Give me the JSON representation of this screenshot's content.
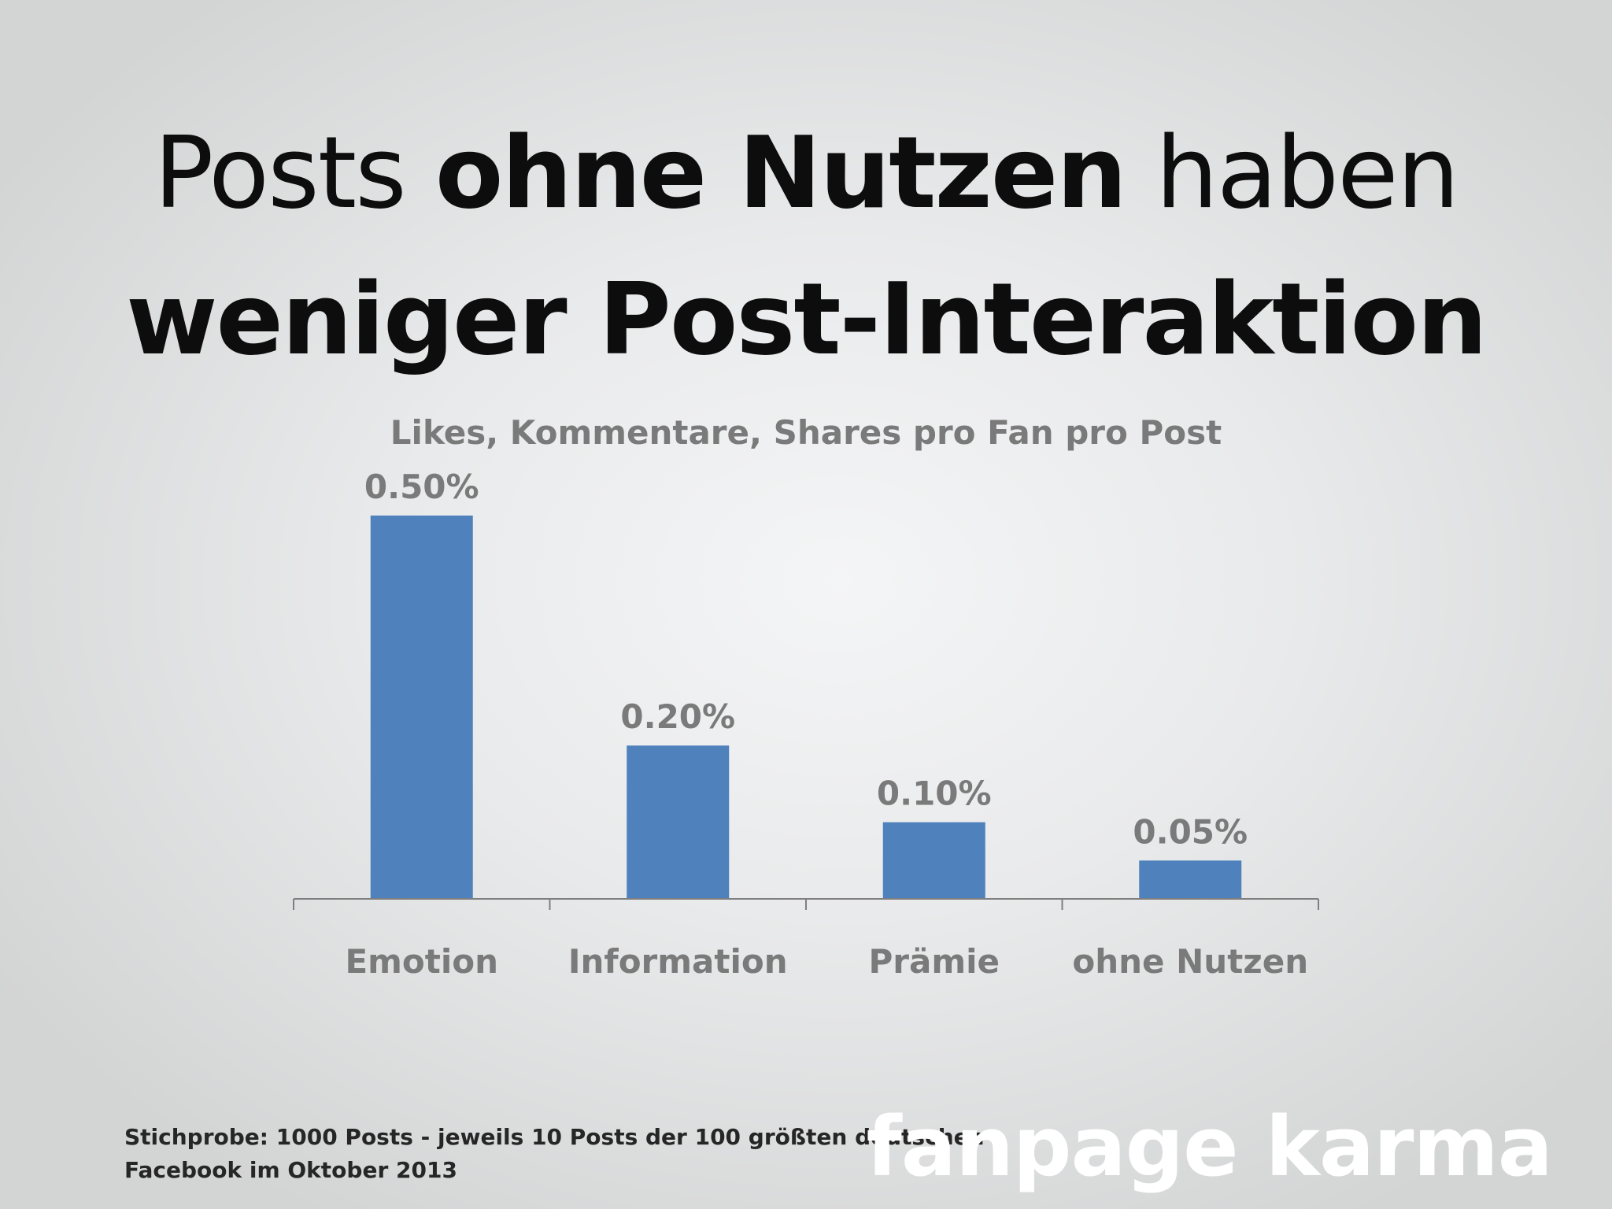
{
  "title": {
    "line1_part1": "Posts ",
    "line1_bold": "ohne Nutzen",
    "line1_part2": " haben",
    "line2": "weniger Post-Interaktion"
  },
  "chart_data": {
    "type": "bar",
    "title": "Likes, Kommentare, Shares pro Fan pro Post",
    "categories": [
      "Emotion",
      "Information",
      "Prämie",
      "ohne Nutzen"
    ],
    "values": [
      0.5,
      0.2,
      0.1,
      0.05
    ],
    "value_labels": [
      "0.50%",
      "0.20%",
      "0.10%",
      "0.05%"
    ],
    "ylim": [
      0,
      0.5
    ],
    "grid": false,
    "bar_color": "#4f81bd"
  },
  "footnote": {
    "line1": "Stichprobe: 1000 Posts - jeweils 10 Posts der 100 größten deutschen",
    "line2": "Facebook im Oktober 2013"
  },
  "logo": {
    "text": "fanpage karma"
  }
}
